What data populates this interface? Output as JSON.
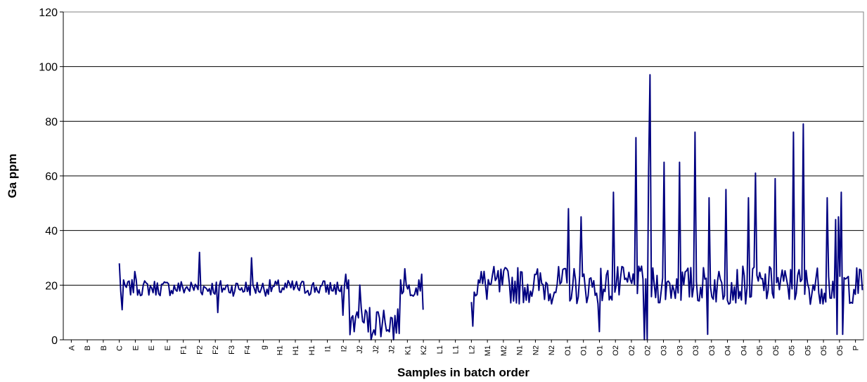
{
  "chart_data": {
    "type": "line",
    "title": "",
    "xlabel": "Samples in batch order",
    "ylabel": "Ga ppm",
    "ylim": [
      0,
      120
    ],
    "yticks": [
      0,
      20,
      40,
      60,
      80,
      100,
      120
    ],
    "grid": true,
    "legend": "none",
    "categories": [
      "A",
      "B",
      "B",
      "C",
      "E",
      "E",
      "E",
      "F1",
      "F2",
      "F2",
      "F3",
      "F4",
      "g",
      "H1",
      "H1",
      "H1",
      "I1",
      "I2",
      "J2",
      "J2",
      "J2",
      "K1",
      "K2",
      "L1",
      "L1",
      "L2",
      "M1",
      "M2",
      "N1",
      "N2",
      "N2",
      "O1",
      "O1",
      "O1",
      "O2",
      "O2",
      "O2",
      "O3",
      "O3",
      "O3",
      "O3",
      "O4",
      "O4",
      "O5",
      "O5",
      "O5",
      "O5",
      "O5",
      "O5",
      "P"
    ],
    "series": [
      {
        "color": "#000080",
        "segments": [
          {
            "from": "C",
            "to": "K2",
            "typical": 19,
            "spikes": [
              [
                "C",
                28
              ],
              [
                "E",
                25
              ],
              [
                "F2",
                32
              ],
              [
                "F4",
                30
              ],
              [
                "I2",
                24
              ],
              [
                "J2",
                20
              ],
              [
                "K1",
                26
              ],
              [
                "K2",
                24
              ]
            ],
            "dips": [
              [
                "C",
                11
              ],
              [
                "F2",
                10
              ],
              [
                "I2",
                9
              ],
              [
                "J2",
                0
              ],
              [
                "J2",
                0
              ],
              [
                "K2",
                11
              ]
            ],
            "low_block": {
              "from": "I2",
              "to": "K1",
              "typical": 7
            }
          },
          {
            "from": "L2",
            "to": "P",
            "typical": 20,
            "spikes": [
              [
                "O1",
                48
              ],
              [
                "O1",
                45
              ],
              [
                "O2",
                54
              ],
              [
                "O2",
                74
              ],
              [
                "O2",
                97
              ],
              [
                "O2",
                62
              ],
              [
                "O3",
                65
              ],
              [
                "O3",
                65
              ],
              [
                "O3",
                76
              ],
              [
                "O3",
                52
              ],
              [
                "O4",
                55
              ],
              [
                "O4",
                52
              ],
              [
                "O5",
                61
              ],
              [
                "O5",
                59
              ],
              [
                "O5",
                76
              ],
              [
                "O5",
                79
              ],
              [
                "O5",
                52
              ],
              [
                "O5",
                56
              ],
              [
                "O5",
                54
              ],
              [
                "O5",
                45
              ],
              [
                "O5",
                44
              ]
            ],
            "dips": [
              [
                "L2",
                5
              ],
              [
                "O1",
                3
              ],
              [
                "O2",
                0
              ],
              [
                "O2",
                0
              ],
              [
                "O3",
                2
              ],
              [
                "O5",
                2
              ],
              [
                "O5",
                2
              ]
            ]
          }
        ]
      }
    ]
  }
}
